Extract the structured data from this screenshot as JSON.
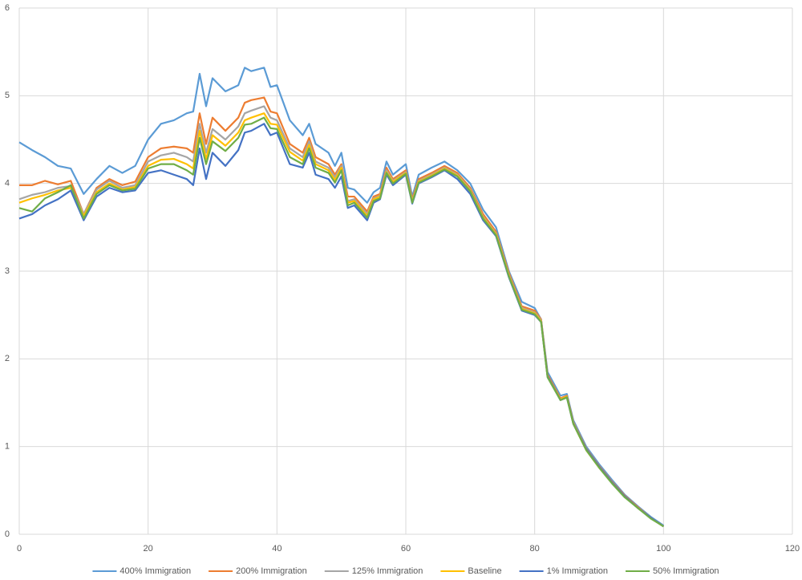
{
  "chart_data": {
    "type": "line",
    "x": [
      0,
      2,
      4,
      6,
      8,
      10,
      12,
      14,
      16,
      18,
      20,
      22,
      24,
      26,
      27,
      28,
      29,
      30,
      32,
      34,
      35,
      36,
      38,
      39,
      40,
      42,
      44,
      45,
      46,
      48,
      49,
      50,
      51,
      52,
      54,
      55,
      56,
      57,
      58,
      60,
      61,
      62,
      64,
      66,
      68,
      70,
      72,
      74,
      76,
      78,
      80,
      81,
      82,
      84,
      85,
      86,
      88,
      90,
      92,
      94,
      96,
      98,
      100
    ],
    "series": [
      {
        "name": "400% Immigration",
        "color": "#5b9bd5",
        "values": [
          4.47,
          4.38,
          4.3,
          4.2,
          4.17,
          3.88,
          4.05,
          4.2,
          4.12,
          4.2,
          4.5,
          4.68,
          4.72,
          4.8,
          4.82,
          5.25,
          4.88,
          5.2,
          5.05,
          5.12,
          5.32,
          5.28,
          5.32,
          5.1,
          5.12,
          4.72,
          4.55,
          4.68,
          4.45,
          4.35,
          4.2,
          4.35,
          3.95,
          3.93,
          3.78,
          3.9,
          3.95,
          4.25,
          4.1,
          4.22,
          3.85,
          4.1,
          4.18,
          4.25,
          4.15,
          4.0,
          3.7,
          3.5,
          3.0,
          2.65,
          2.58,
          2.45,
          1.85,
          1.58,
          1.6,
          1.3,
          1.0,
          0.8,
          0.62,
          0.45,
          0.32,
          0.2,
          0.1
        ]
      },
      {
        "name": "200% Immigration",
        "color": "#ed7d31",
        "values": [
          3.98,
          3.98,
          4.03,
          3.99,
          4.03,
          3.65,
          3.95,
          4.05,
          3.98,
          4.02,
          4.3,
          4.4,
          4.42,
          4.4,
          4.35,
          4.8,
          4.45,
          4.75,
          4.6,
          4.75,
          4.92,
          4.95,
          4.98,
          4.82,
          4.8,
          4.45,
          4.35,
          4.52,
          4.3,
          4.22,
          4.1,
          4.22,
          3.85,
          3.85,
          3.68,
          3.85,
          3.88,
          4.18,
          4.05,
          4.15,
          3.82,
          4.05,
          4.12,
          4.2,
          4.12,
          3.95,
          3.65,
          3.45,
          2.98,
          2.6,
          2.55,
          2.45,
          1.82,
          1.55,
          1.58,
          1.28,
          0.98,
          0.78,
          0.6,
          0.44,
          0.31,
          0.19,
          0.09
        ]
      },
      {
        "name": "125% Immigration",
        "color": "#a5a5a5",
        "values": [
          3.82,
          3.87,
          3.9,
          3.95,
          3.97,
          3.65,
          3.93,
          4.03,
          3.95,
          3.98,
          4.25,
          4.32,
          4.35,
          4.3,
          4.25,
          4.68,
          4.35,
          4.62,
          4.5,
          4.65,
          4.8,
          4.83,
          4.88,
          4.75,
          4.72,
          4.4,
          4.3,
          4.48,
          4.25,
          4.18,
          4.07,
          4.2,
          3.8,
          3.82,
          3.65,
          3.83,
          3.86,
          4.15,
          4.03,
          4.13,
          3.8,
          4.03,
          4.1,
          4.18,
          4.1,
          3.93,
          3.62,
          3.43,
          2.96,
          2.58,
          2.53,
          2.44,
          1.8,
          1.54,
          1.57,
          1.27,
          0.97,
          0.77,
          0.59,
          0.43,
          0.3,
          0.19,
          0.09
        ]
      },
      {
        "name": "Baseline",
        "color": "#ffc000",
        "values": [
          3.78,
          3.83,
          3.87,
          3.92,
          3.95,
          3.63,
          3.9,
          4.0,
          3.93,
          3.96,
          4.2,
          4.27,
          4.28,
          4.22,
          4.17,
          4.6,
          4.28,
          4.55,
          4.43,
          4.58,
          4.72,
          4.75,
          4.8,
          4.68,
          4.67,
          4.36,
          4.26,
          4.44,
          4.22,
          4.15,
          4.04,
          4.18,
          3.78,
          3.8,
          3.63,
          3.82,
          3.85,
          4.13,
          4.02,
          4.12,
          3.79,
          4.02,
          4.09,
          4.17,
          4.09,
          3.92,
          3.61,
          3.42,
          2.95,
          2.57,
          2.52,
          2.43,
          1.8,
          1.54,
          1.57,
          1.26,
          0.96,
          0.76,
          0.59,
          0.43,
          0.3,
          0.19,
          0.09
        ]
      },
      {
        "name": "1% Immigration",
        "color": "#4472c4",
        "values": [
          3.6,
          3.65,
          3.75,
          3.82,
          3.92,
          3.58,
          3.85,
          3.95,
          3.9,
          3.92,
          4.12,
          4.15,
          4.1,
          4.05,
          3.98,
          4.4,
          4.05,
          4.35,
          4.2,
          4.38,
          4.58,
          4.6,
          4.68,
          4.55,
          4.58,
          4.22,
          4.18,
          4.35,
          4.1,
          4.05,
          3.95,
          4.08,
          3.72,
          3.75,
          3.58,
          3.78,
          3.82,
          4.1,
          3.98,
          4.1,
          3.77,
          4.0,
          4.07,
          4.15,
          4.05,
          3.88,
          3.58,
          3.4,
          2.93,
          2.55,
          2.5,
          2.42,
          1.8,
          1.53,
          1.56,
          1.26,
          0.97,
          0.77,
          0.59,
          0.43,
          0.3,
          0.19,
          0.09
        ]
      },
      {
        "name": "50% Immigration",
        "color": "#70ad47",
        "values": [
          3.72,
          3.68,
          3.83,
          3.9,
          3.98,
          3.6,
          3.88,
          3.98,
          3.92,
          3.94,
          4.17,
          4.22,
          4.22,
          4.15,
          4.1,
          4.52,
          4.22,
          4.48,
          4.37,
          4.52,
          4.67,
          4.68,
          4.75,
          4.63,
          4.62,
          4.3,
          4.22,
          4.4,
          4.18,
          4.12,
          4.01,
          4.15,
          3.75,
          3.78,
          3.61,
          3.8,
          3.83,
          4.12,
          4.0,
          4.11,
          3.78,
          4.01,
          4.08,
          4.16,
          4.08,
          3.91,
          3.6,
          3.41,
          2.94,
          2.56,
          2.51,
          2.42,
          1.79,
          1.53,
          1.56,
          1.26,
          0.96,
          0.76,
          0.58,
          0.42,
          0.3,
          0.18,
          0.09
        ]
      }
    ],
    "xlim": [
      0,
      120
    ],
    "xticks": [
      0,
      20,
      40,
      60,
      80,
      100,
      120
    ],
    "ylim": [
      0,
      6
    ],
    "yticks": [
      0,
      1,
      2,
      3,
      4,
      5,
      6
    ],
    "grid": true,
    "legend": "bottom"
  }
}
